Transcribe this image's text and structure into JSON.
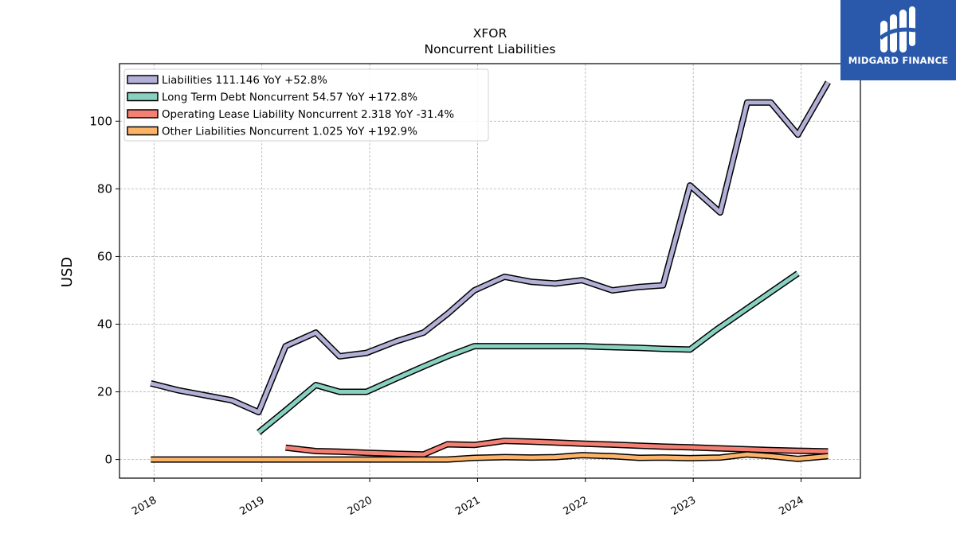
{
  "brand": {
    "name": "MIDGARD FINANCE",
    "color": "#2a58aa"
  },
  "chart_data": {
    "type": "line",
    "title": "XFOR",
    "subtitle": "Noncurrent  Liabilities",
    "ylabel": "USD",
    "xlabel": "",
    "ylim": [
      -5.5,
      117
    ],
    "xlim": [
      2017.68,
      2024.55
    ],
    "yticks": [
      0,
      20,
      40,
      60,
      80,
      100
    ],
    "xticks": [
      "2018",
      "2019",
      "2020",
      "2021",
      "2022",
      "2023",
      "2024"
    ],
    "grid": true,
    "legend_position": "top-left",
    "series": [
      {
        "name": "Liabilities  111.146 YoY +52.8%",
        "color": "#b3b0d8",
        "points": [
          [
            2017.97,
            22.5
          ],
          [
            2018.22,
            20.5
          ],
          [
            2018.72,
            17.5
          ],
          [
            2018.97,
            14
          ],
          [
            2019.22,
            33.5
          ],
          [
            2019.5,
            37.5
          ],
          [
            2019.72,
            30.5
          ],
          [
            2019.97,
            31.5
          ],
          [
            2020.25,
            35
          ],
          [
            2020.5,
            37.5
          ],
          [
            2020.72,
            43
          ],
          [
            2020.97,
            50
          ],
          [
            2021.25,
            54
          ],
          [
            2021.5,
            52.5
          ],
          [
            2021.72,
            52
          ],
          [
            2021.97,
            53
          ],
          [
            2022.25,
            50
          ],
          [
            2022.5,
            51
          ],
          [
            2022.72,
            51.5
          ],
          [
            2022.97,
            81
          ],
          [
            2023.25,
            73
          ],
          [
            2023.5,
            105.5
          ],
          [
            2023.72,
            105.5
          ],
          [
            2023.97,
            96
          ],
          [
            2024.25,
            111.5
          ]
        ]
      },
      {
        "name": "Long Term Debt Noncurrent  54.57 YoY +172.8%",
        "color": "#88d1c0",
        "points": [
          [
            2018.97,
            8
          ],
          [
            2019.22,
            14.5
          ],
          [
            2019.5,
            22
          ],
          [
            2019.72,
            20
          ],
          [
            2019.97,
            20
          ],
          [
            2020.25,
            24
          ],
          [
            2020.5,
            27.5
          ],
          [
            2020.72,
            30.5
          ],
          [
            2020.97,
            33.5
          ],
          [
            2021.25,
            33.5
          ],
          [
            2021.5,
            33.5
          ],
          [
            2021.72,
            33.5
          ],
          [
            2021.97,
            33.5
          ],
          [
            2022.25,
            33.2
          ],
          [
            2022.5,
            33
          ],
          [
            2022.72,
            32.7
          ],
          [
            2022.97,
            32.5
          ],
          [
            2023.22,
            38.5
          ],
          [
            2023.47,
            44
          ],
          [
            2023.72,
            49.5
          ],
          [
            2023.97,
            55
          ]
        ]
      },
      {
        "name": "Operating Lease Liability Noncurrent  2.318 YoY -31.4%",
        "color": "#f47f73",
        "points": [
          [
            2019.22,
            3.5
          ],
          [
            2019.5,
            2.5
          ],
          [
            2019.72,
            2.3
          ],
          [
            2019.97,
            2
          ],
          [
            2020.25,
            1.7
          ],
          [
            2020.5,
            1.5
          ],
          [
            2020.72,
            4.5
          ],
          [
            2020.97,
            4.3
          ],
          [
            2021.25,
            5.5
          ],
          [
            2021.5,
            5.3
          ],
          [
            2021.72,
            5
          ],
          [
            2021.97,
            4.7
          ],
          [
            2022.25,
            4.4
          ],
          [
            2022.5,
            4.1
          ],
          [
            2022.72,
            3.8
          ],
          [
            2022.97,
            3.6
          ],
          [
            2023.25,
            3.3
          ],
          [
            2023.5,
            3
          ],
          [
            2023.72,
            2.8
          ],
          [
            2023.97,
            2.6
          ],
          [
            2024.25,
            2.4
          ]
        ]
      },
      {
        "name": "Other Liabilities Noncurrent  1.025 YoY +192.9%",
        "color": "#fbb36a",
        "points": [
          [
            2017.97,
            0
          ],
          [
            2018.22,
            0
          ],
          [
            2018.5,
            0
          ],
          [
            2018.72,
            0
          ],
          [
            2018.97,
            0
          ],
          [
            2019.25,
            0
          ],
          [
            2019.5,
            0
          ],
          [
            2019.72,
            0
          ],
          [
            2019.97,
            0
          ],
          [
            2020.25,
            0
          ],
          [
            2020.5,
            0
          ],
          [
            2020.72,
            0
          ],
          [
            2020.97,
            0.5
          ],
          [
            2021.25,
            0.7
          ],
          [
            2021.5,
            0.6
          ],
          [
            2021.72,
            0.7
          ],
          [
            2021.97,
            1.3
          ],
          [
            2022.25,
            1
          ],
          [
            2022.5,
            0.5
          ],
          [
            2022.72,
            0.6
          ],
          [
            2022.97,
            0.4
          ],
          [
            2023.25,
            0.6
          ],
          [
            2023.5,
            1.5
          ],
          [
            2023.72,
            1
          ],
          [
            2023.97,
            0.2
          ],
          [
            2024.25,
            1
          ]
        ]
      }
    ]
  }
}
